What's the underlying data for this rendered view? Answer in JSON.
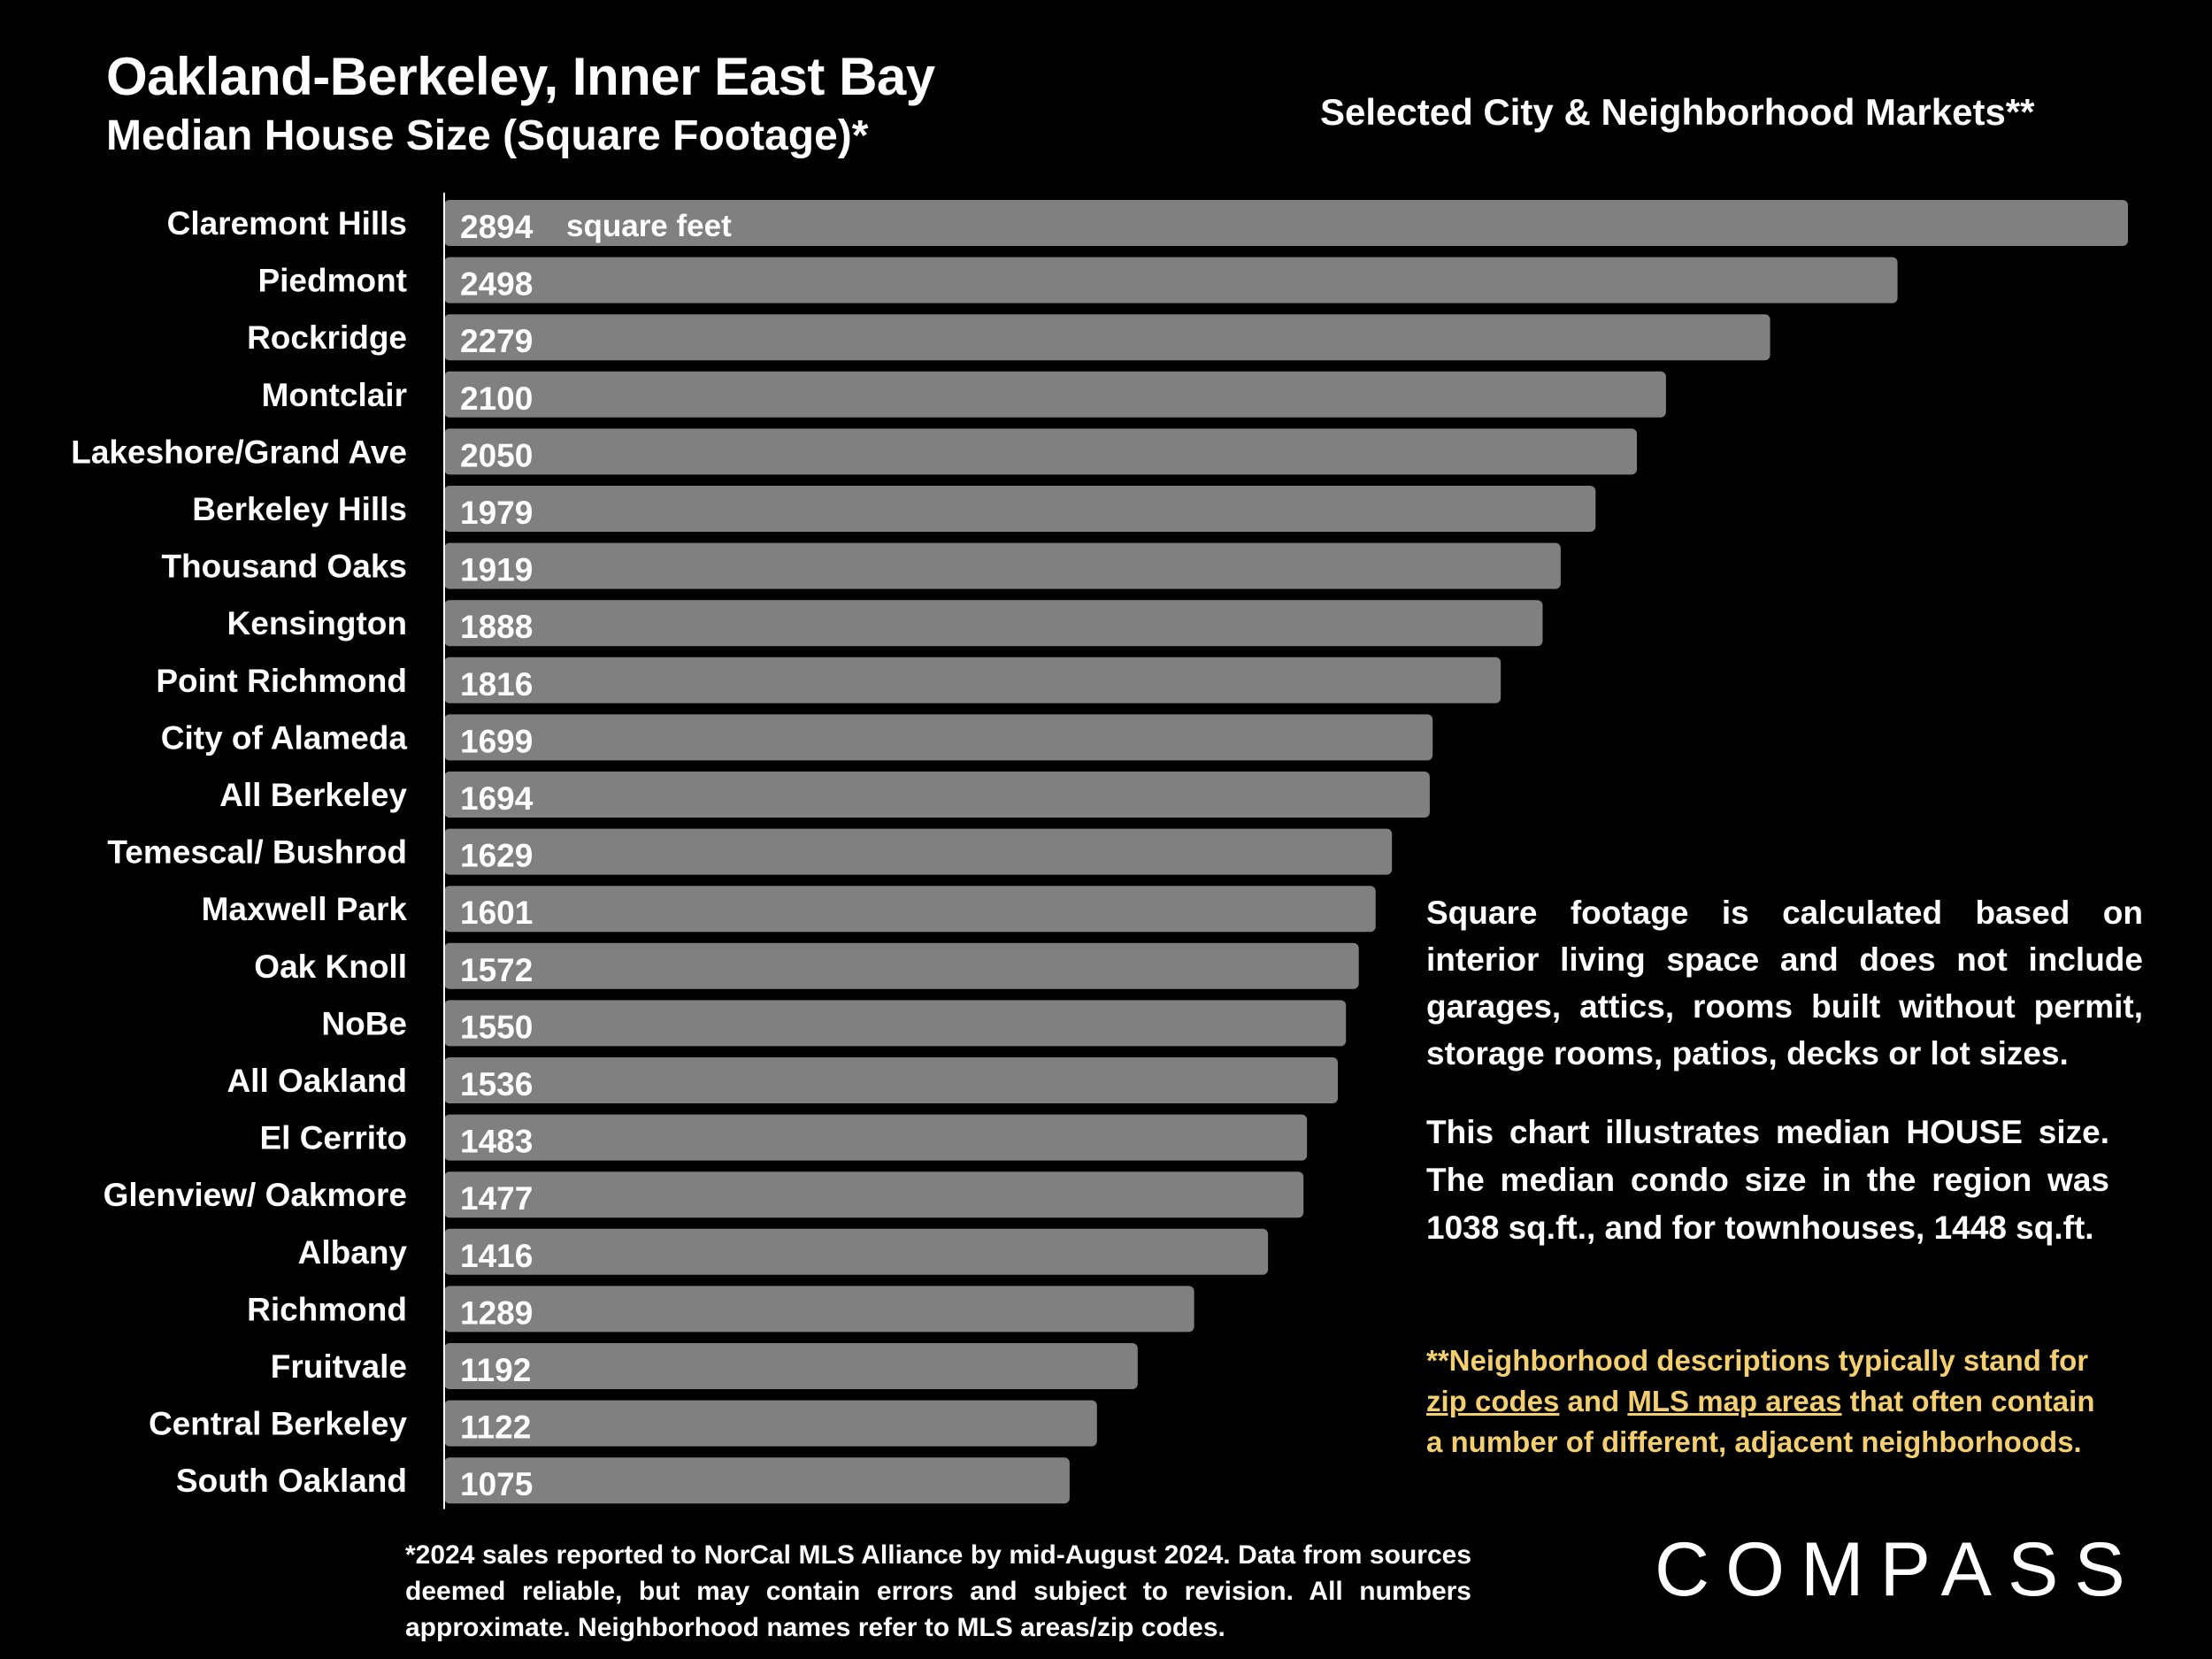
{
  "header": {
    "title": "Oakland-Berkeley, Inner East Bay",
    "subtitle": "Median House Size (Square Footage)*",
    "right_heading": "Selected City & Neighborhood Markets**"
  },
  "chart_data": {
    "type": "bar",
    "orientation": "horizontal",
    "title": "Oakland-Berkeley, Inner East Bay",
    "subtitle": "Median House Size (Square Footage)*",
    "unit_label": "square feet",
    "categories": [
      "Claremont Hills",
      "Piedmont",
      "Rockridge",
      "Montclair",
      "Lakeshore/Grand Ave",
      "Berkeley Hills",
      "Thousand Oaks",
      "Kensington",
      "Point Richmond",
      "City of Alameda",
      "All Berkeley",
      "Temescal/ Bushrod",
      "Maxwell Park",
      "Oak Knoll",
      "NoBe",
      "All Oakland",
      "El Cerrito",
      "Glenview/ Oakmore",
      "Albany",
      "Richmond",
      "Fruitvale",
      "Central Berkeley",
      "South Oakland"
    ],
    "values": [
      2894,
      2498,
      2279,
      2100,
      2050,
      1979,
      1919,
      1888,
      1816,
      1699,
      1694,
      1629,
      1601,
      1572,
      1550,
      1536,
      1483,
      1477,
      1416,
      1289,
      1192,
      1122,
      1075
    ],
    "xlim": [
      0,
      2894
    ],
    "bar_color": "#808080",
    "axis_color": "#ffffff",
    "grid": false
  },
  "notes": {
    "definition": "Square footage is calculated based on interior living space and does not include garages, attics, rooms built without permit, storage rooms, patios, decks or lot sizes.",
    "comparison": "This chart illustrates median HOUSE size. The median condo size in the region was 1038 sq.ft., and for townhouses, 1448 sq.ft.",
    "neighborhood_part1": "**Neighborhood descriptions typically stand for ",
    "neighborhood_link1": "zip codes",
    "neighborhood_part2": " and ",
    "neighborhood_link2": "MLS map areas",
    "neighborhood_part3": " that often contain a number of different, adjacent neighborhoods.",
    "neighborhood_color": "#f4cf6f"
  },
  "footnote": "*2024 sales reported to NorCal MLS Alliance by mid-August 2024. Data from sources deemed reliable, but may contain errors and subject to revision. All numbers approximate. Neighborhood names refer to MLS areas/zip codes.",
  "logo": {
    "text": "COMPASS"
  }
}
